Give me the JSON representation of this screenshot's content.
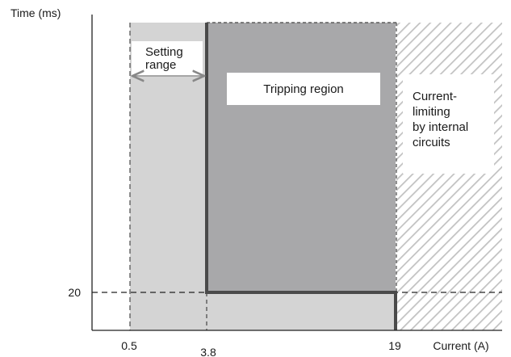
{
  "axes": {
    "y_label": "Time (ms)",
    "x_label": "Current (A)",
    "y_tick": "20",
    "x_ticks": [
      "0.5",
      "3.8",
      "19"
    ]
  },
  "regions": {
    "setting_range": "Setting\nrange",
    "tripping": "Tripping region",
    "current_limiting": "Current-\nlimiting\nby internal\ncircuits"
  },
  "colors": {
    "setting_fill": "#d4d4d4",
    "tripping_fill": "#a8a8aa",
    "boundary": "#4a4a4a",
    "hatch": "#c2c2c2"
  }
}
